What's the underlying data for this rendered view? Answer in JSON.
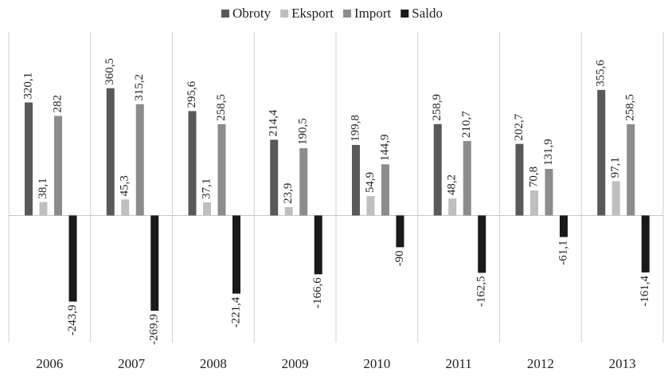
{
  "chart_data": {
    "type": "bar",
    "categories": [
      "2006",
      "2007",
      "2008",
      "2009",
      "2010",
      "2011",
      "2012",
      "2013"
    ],
    "series": [
      {
        "name": "Obroty",
        "color": "#595959",
        "values": [
          320.1,
          360.5,
          295.6,
          214.4,
          199.8,
          258.9,
          202.7,
          355.6
        ],
        "value_labels": [
          "320,1",
          "360,5",
          "295,6",
          "214,4",
          "199,8",
          "258,9",
          "202,7",
          "355,6"
        ]
      },
      {
        "name": "Eksport",
        "color": "#bfbfbf",
        "values": [
          38.1,
          45.3,
          37.1,
          23.9,
          54.9,
          48.2,
          70.8,
          97.1
        ],
        "value_labels": [
          "38,1",
          "45,3",
          "37,1",
          "23,9",
          "54,9",
          "48,2",
          "70,8",
          "97,1"
        ]
      },
      {
        "name": "Import",
        "color": "#8c8c8c",
        "values": [
          282,
          315.2,
          258.5,
          190.5,
          144.9,
          210.7,
          131.9,
          258.5
        ],
        "value_labels": [
          "282",
          "315,2",
          "258,5",
          "190,5",
          "144,9",
          "210,7",
          "131,9",
          "258,5"
        ]
      },
      {
        "name": "Saldo",
        "color": "#1a1a1a",
        "values": [
          -243.9,
          -269.9,
          -221.4,
          -166.6,
          -90,
          -162.5,
          -61.1,
          -161.4
        ],
        "value_labels": [
          "-243,9",
          "-269,9",
          "-221,4",
          "-166,6",
          "-90",
          "-162,5",
          "-61,1",
          "-161,4"
        ]
      }
    ],
    "ylim": [
      -360,
      520
    ],
    "legend": "top"
  }
}
